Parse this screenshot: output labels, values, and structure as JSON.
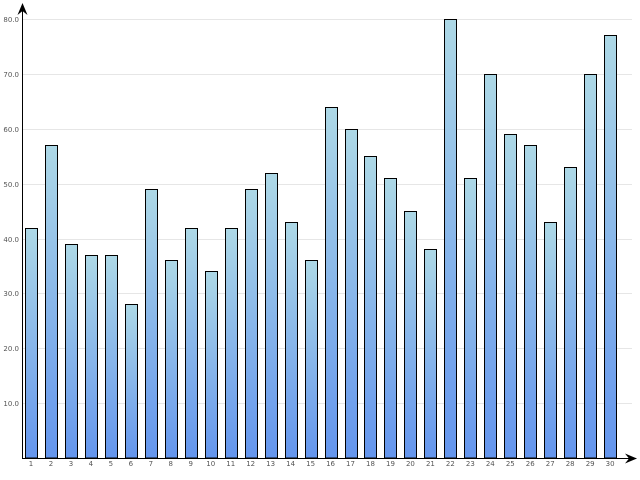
{
  "chart_data": {
    "type": "bar",
    "title": "",
    "xlabel": "",
    "ylabel": "",
    "categories": [
      "1",
      "2",
      "3",
      "4",
      "5",
      "6",
      "7",
      "8",
      "9",
      "10",
      "11",
      "12",
      "13",
      "14",
      "15",
      "16",
      "17",
      "18",
      "19",
      "20",
      "21",
      "22",
      "23",
      "24",
      "25",
      "26",
      "27",
      "28",
      "29",
      "30"
    ],
    "values": [
      42,
      57,
      39,
      37,
      37,
      28,
      49,
      36,
      42,
      34,
      42,
      49,
      52,
      43,
      36,
      64,
      60,
      55,
      51,
      45,
      38,
      80,
      51,
      70,
      59,
      57,
      43,
      53,
      70,
      77
    ],
    "yticks": [
      "10.0",
      "20.0",
      "30.0",
      "40.0",
      "50.0",
      "60.0",
      "70.0",
      "80.0"
    ],
    "ylim": [
      0,
      80
    ],
    "grid": true,
    "legend": "none",
    "colors": {
      "bar_top": "#add8e6",
      "bar_bottom": "#6495ed",
      "bar_stroke": "#000000",
      "grid": "#e6e6e6",
      "axis": "#000000"
    }
  }
}
